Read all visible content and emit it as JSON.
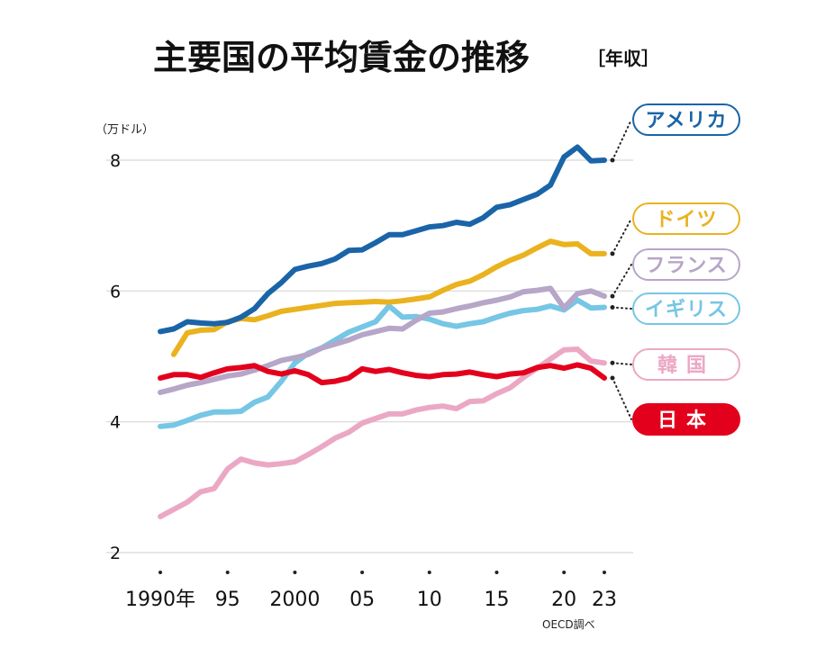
{
  "title": "主要国の平均賃金の推移",
  "subtitle": "［年収］",
  "source": "OECD調べ",
  "chart_data": {
    "type": "line",
    "ylabel": "（万ドル）",
    "ylim": [
      2,
      8.5
    ],
    "yticks": [
      2,
      4,
      6,
      8
    ],
    "xlim": [
      1990,
      2023
    ],
    "xticks": [
      1990,
      1995,
      2000,
      2005,
      2010,
      2015,
      2020,
      2023
    ],
    "xtick_labels": [
      "1990年",
      "95",
      "2000",
      "05",
      "10",
      "15",
      "20",
      "23"
    ],
    "grid": "horizontal",
    "legend_placement": "right, end-of-line labels",
    "series": [
      {
        "name": "アメリカ",
        "color": "#1a64a8",
        "label_style": "outline",
        "x": [
          1990,
          1991,
          1992,
          1993,
          1994,
          1995,
          1996,
          1997,
          1998,
          1999,
          2000,
          2001,
          2002,
          2003,
          2004,
          2005,
          2006,
          2007,
          2008,
          2009,
          2010,
          2011,
          2012,
          2013,
          2014,
          2015,
          2016,
          2017,
          2018,
          2019,
          2020,
          2021,
          2022,
          2023
        ],
        "values": [
          5.38,
          5.42,
          5.53,
          5.51,
          5.5,
          5.52,
          5.6,
          5.73,
          5.96,
          6.13,
          6.33,
          6.38,
          6.42,
          6.49,
          6.62,
          6.63,
          6.74,
          6.86,
          6.86,
          6.92,
          6.98,
          7.0,
          7.05,
          7.02,
          7.12,
          7.28,
          7.32,
          7.4,
          7.48,
          7.62,
          8.05,
          8.2,
          7.99,
          8.0
        ]
      },
      {
        "name": "ドイツ",
        "color": "#eab21e",
        "label_style": "outline",
        "x": [
          1991,
          1992,
          1993,
          1994,
          1995,
          1996,
          1997,
          1998,
          1999,
          2000,
          2001,
          2002,
          2003,
          2004,
          2005,
          2006,
          2007,
          2008,
          2009,
          2010,
          2011,
          2012,
          2013,
          2014,
          2015,
          2016,
          2017,
          2018,
          2019,
          2020,
          2021,
          2022,
          2023
        ],
        "values": [
          5.03,
          5.36,
          5.4,
          5.41,
          5.53,
          5.58,
          5.56,
          5.62,
          5.69,
          5.72,
          5.75,
          5.78,
          5.81,
          5.82,
          5.83,
          5.84,
          5.83,
          5.85,
          5.88,
          5.91,
          6.01,
          6.1,
          6.15,
          6.25,
          6.37,
          6.47,
          6.55,
          6.66,
          6.76,
          6.71,
          6.72,
          6.57,
          6.57
        ]
      },
      {
        "name": "フランス",
        "color": "#b6a6c8",
        "label_style": "outline",
        "x": [
          1990,
          1991,
          1992,
          1993,
          1994,
          1995,
          1996,
          1997,
          1998,
          1999,
          2000,
          2001,
          2002,
          2003,
          2004,
          2005,
          2006,
          2007,
          2008,
          2009,
          2010,
          2011,
          2012,
          2013,
          2014,
          2015,
          2016,
          2017,
          2018,
          2019,
          2020,
          2021,
          2022,
          2023
        ],
        "values": [
          4.45,
          4.5,
          4.56,
          4.6,
          4.65,
          4.7,
          4.73,
          4.79,
          4.86,
          4.94,
          4.98,
          5.03,
          5.13,
          5.19,
          5.25,
          5.33,
          5.38,
          5.43,
          5.42,
          5.55,
          5.66,
          5.68,
          5.73,
          5.77,
          5.82,
          5.86,
          5.91,
          5.99,
          6.01,
          6.04,
          5.74,
          5.96,
          6.0,
          5.92
        ]
      },
      {
        "name": "イギリス",
        "color": "#76c6e5",
        "label_style": "outline",
        "x": [
          1990,
          1991,
          1992,
          1993,
          1994,
          1995,
          1996,
          1997,
          1998,
          1999,
          2000,
          2001,
          2002,
          2003,
          2004,
          2005,
          2006,
          2007,
          2008,
          2009,
          2010,
          2011,
          2012,
          2013,
          2014,
          2015,
          2016,
          2017,
          2018,
          2019,
          2020,
          2021,
          2022,
          2023
        ],
        "values": [
          3.93,
          3.95,
          4.02,
          4.1,
          4.15,
          4.15,
          4.16,
          4.3,
          4.38,
          4.62,
          4.9,
          5.05,
          5.13,
          5.25,
          5.37,
          5.45,
          5.53,
          5.77,
          5.6,
          5.61,
          5.57,
          5.5,
          5.46,
          5.5,
          5.53,
          5.6,
          5.66,
          5.7,
          5.72,
          5.77,
          5.71,
          5.86,
          5.74,
          5.75
        ]
      },
      {
        "name": "韓国",
        "color": "#eba8c4",
        "label_style": "outline",
        "x": [
          1990,
          1991,
          1992,
          1993,
          1994,
          1995,
          1996,
          1997,
          1998,
          1999,
          2000,
          2001,
          2002,
          2003,
          2004,
          2005,
          2006,
          2007,
          2008,
          2009,
          2010,
          2011,
          2012,
          2013,
          2014,
          2015,
          2016,
          2017,
          2018,
          2019,
          2020,
          2021,
          2022,
          2023
        ],
        "values": [
          2.55,
          2.66,
          2.77,
          2.93,
          2.98,
          3.28,
          3.43,
          3.37,
          3.34,
          3.36,
          3.39,
          3.5,
          3.62,
          3.75,
          3.84,
          3.98,
          4.05,
          4.12,
          4.12,
          4.18,
          4.22,
          4.24,
          4.2,
          4.31,
          4.32,
          4.43,
          4.52,
          4.68,
          4.82,
          4.96,
          5.1,
          5.11,
          4.93,
          4.9
        ]
      },
      {
        "name": "日本",
        "color": "#e3001c",
        "label_style": "filled",
        "x": [
          1990,
          1991,
          1992,
          1993,
          1994,
          1995,
          1996,
          1997,
          1998,
          1999,
          2000,
          2001,
          2002,
          2003,
          2004,
          2005,
          2006,
          2007,
          2008,
          2009,
          2010,
          2011,
          2012,
          2013,
          2014,
          2015,
          2016,
          2017,
          2018,
          2019,
          2020,
          2021,
          2022,
          2023
        ],
        "values": [
          4.67,
          4.72,
          4.72,
          4.68,
          4.75,
          4.81,
          4.83,
          4.86,
          4.77,
          4.73,
          4.78,
          4.72,
          4.6,
          4.62,
          4.67,
          4.81,
          4.77,
          4.8,
          4.75,
          4.71,
          4.69,
          4.72,
          4.73,
          4.76,
          4.72,
          4.69,
          4.73,
          4.75,
          4.83,
          4.86,
          4.82,
          4.87,
          4.82,
          4.67
        ]
      }
    ]
  }
}
